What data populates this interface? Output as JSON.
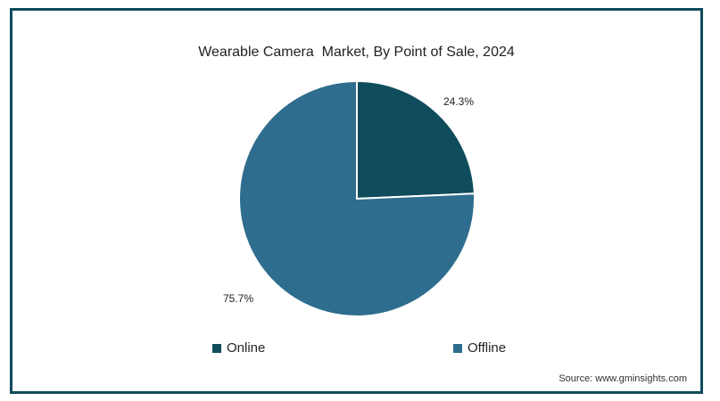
{
  "chart_data": {
    "type": "pie",
    "title": "Wearable Camera  Market, By Point of Sale, 2024",
    "categories": [
      "Online",
      "Offline"
    ],
    "values": [
      24.3,
      75.7
    ],
    "labels": [
      "24.3%",
      "75.7%"
    ],
    "colors": [
      "#0f4c5c",
      "#2e6d8e"
    ],
    "legend_position": "bottom",
    "source": "Source: www.gminsights.com"
  }
}
